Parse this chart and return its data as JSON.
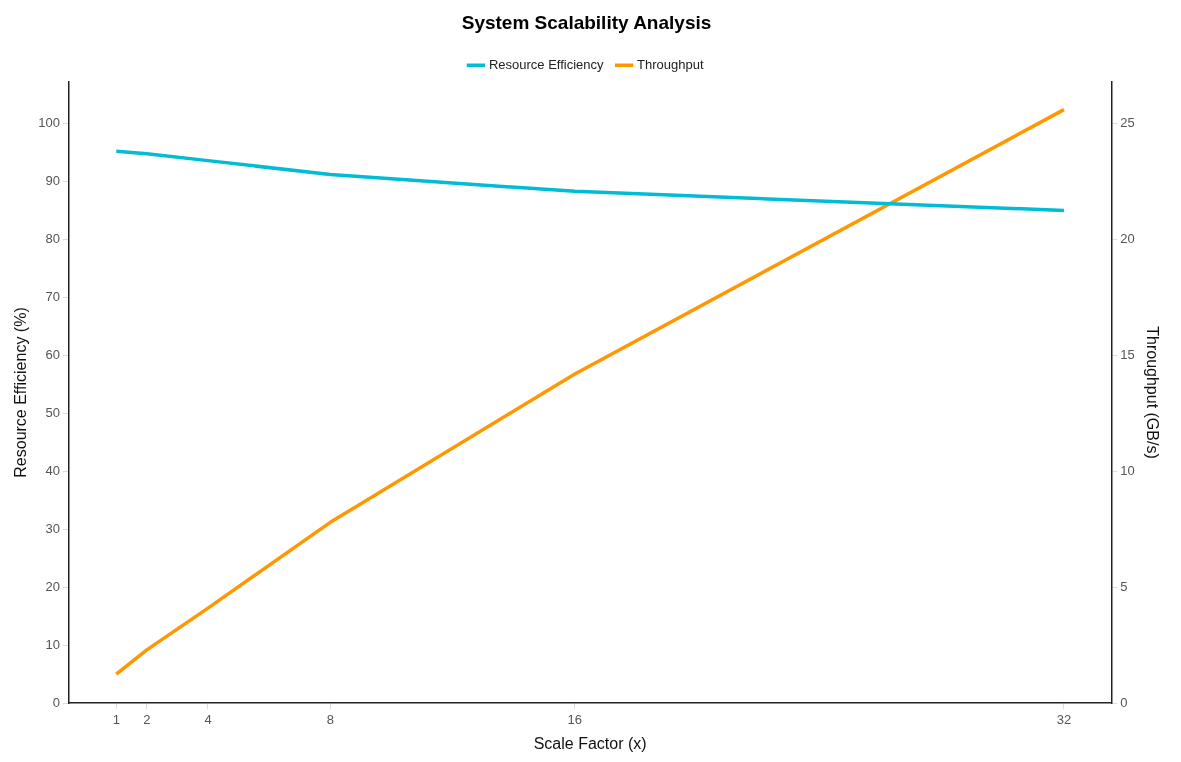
{
  "chart_data": {
    "type": "line",
    "title": "System Scalability Analysis",
    "xlabel": "Scale Factor (x)",
    "ylabel": "Resource Efficiency (%)",
    "y2label": "Throughput (GB/s)",
    "x": [
      1,
      2,
      4,
      8,
      16,
      32
    ],
    "series": [
      {
        "name": "Resource Efficiency",
        "color": "#00bcd4",
        "values": [
          95.2,
          94.8,
          93.6,
          91.2,
          88.3,
          85.0
        ]
      },
      {
        "name": "Throughput",
        "color": "#ff9800",
        "axis": "y2",
        "values": [
          1.25,
          2.3,
          4.1,
          7.8,
          14.2,
          25.6
        ]
      }
    ],
    "xlim": [
      -0.55,
      33.55
    ],
    "xticks": [
      1,
      2,
      4,
      8,
      16,
      32
    ],
    "ylim": [
      0,
      107.2
    ],
    "yticks": [
      0,
      10,
      20,
      30,
      40,
      50,
      60,
      70,
      80,
      90,
      100
    ],
    "y2lim": [
      0,
      26.8
    ],
    "y2ticks": [
      0,
      5,
      10,
      15,
      20,
      25
    ],
    "grid": false,
    "legend": "top",
    "marker": "none",
    "line_style": "solid"
  }
}
